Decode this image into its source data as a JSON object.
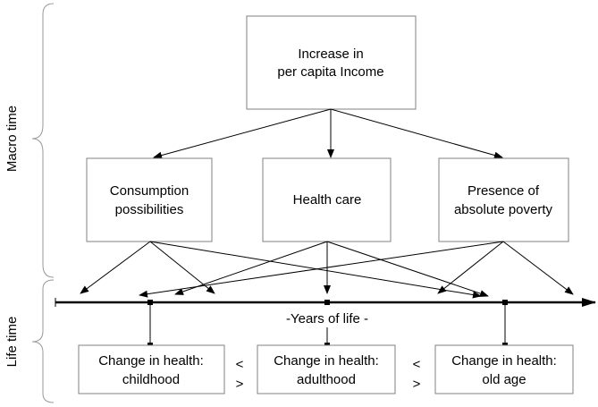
{
  "side_labels": [
    "Macro time",
    "Life time"
  ],
  "top_node": {
    "lines": [
      "Increase in",
      "per capita Income"
    ]
  },
  "middle_nodes": [
    {
      "lines": [
        "Consumption",
        "possibilities"
      ]
    },
    {
      "lines": [
        "Health care"
      ]
    },
    {
      "lines": [
        "Presence of",
        "absolute poverty"
      ]
    }
  ],
  "axis_label": "-Years of life -",
  "bottom_nodes": [
    {
      "lines": [
        "Change in health:",
        "childhood"
      ]
    },
    {
      "lines": [
        "Change in health:",
        "adulthood"
      ]
    },
    {
      "lines": [
        "Change in health:",
        "old age"
      ]
    }
  ],
  "comparisons": [
    {
      "upper": "<",
      "lower": ">"
    },
    {
      "upper": "<",
      "lower": ">"
    }
  ]
}
